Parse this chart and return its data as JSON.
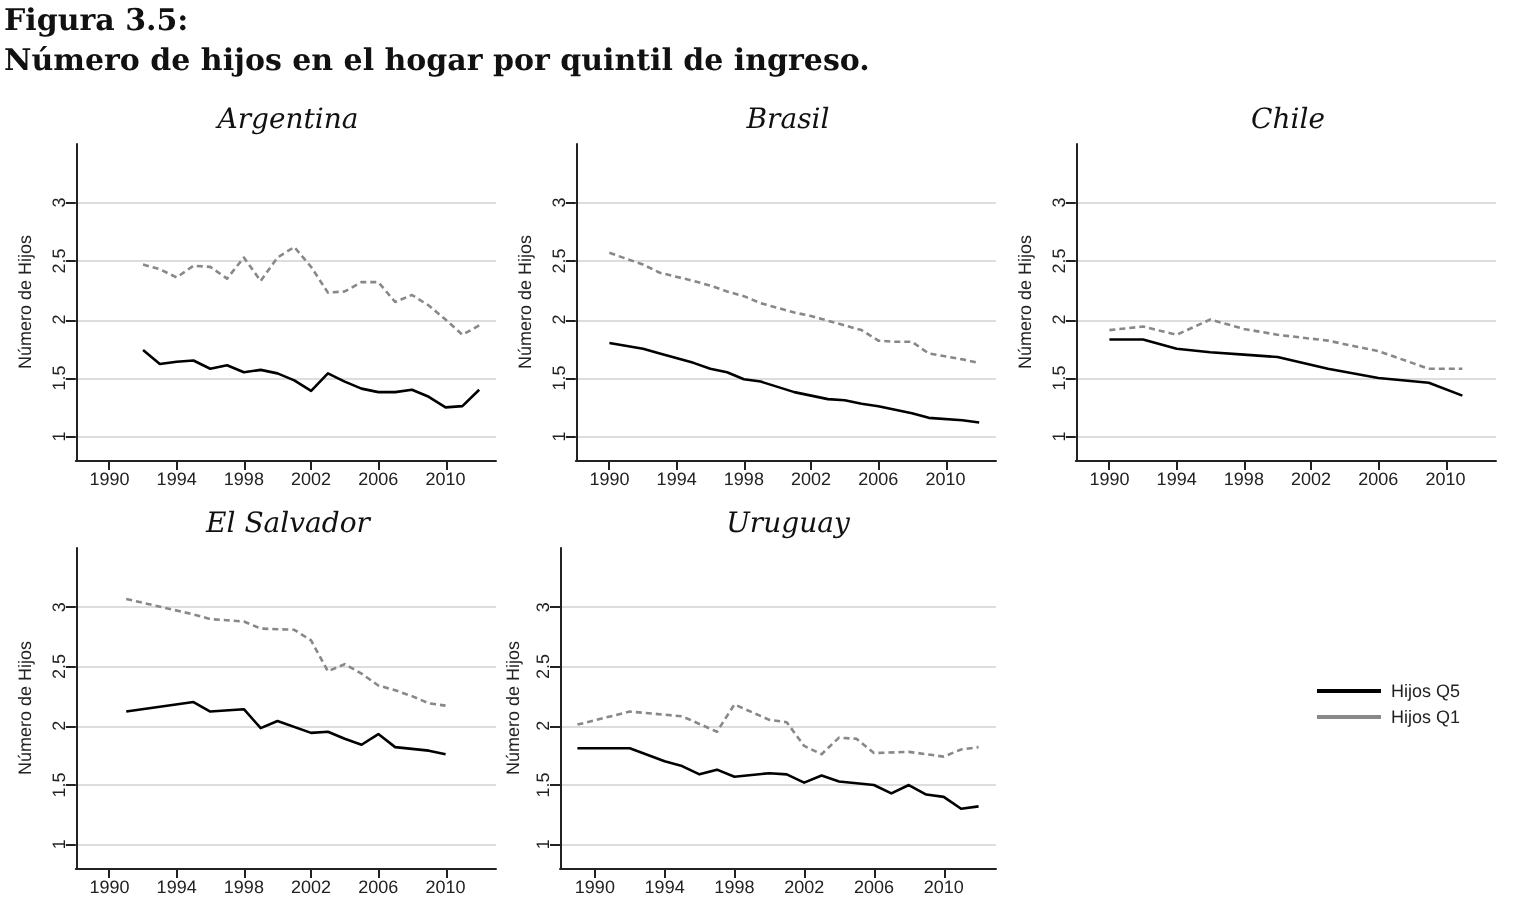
{
  "chart_data": [
    {
      "type": "line",
      "title": "Argentina",
      "annotations": [
        "Figura 3.5:",
        "Número de hijos en el hogar por quintil de ingreso."
      ],
      "ylabel": "Número de Hijos",
      "xlim": [
        1988,
        2013
      ],
      "xticks": [
        1990,
        1994,
        1998,
        2002,
        2006,
        2010
      ],
      "ylim": [
        0.8,
        3.5
      ],
      "yticks": [
        1,
        1.5,
        2,
        2.5,
        3
      ],
      "grid": "y",
      "legend": false,
      "marker": "none",
      "series": [
        {
          "color": "#000000",
          "line_style": "solid",
          "x": [
            1992,
            1993,
            1994,
            1995,
            1996,
            1997,
            1998,
            1999,
            2000,
            2001,
            2002,
            2003,
            2004,
            2005,
            2006,
            2007,
            2008,
            2009,
            2010,
            2011,
            2012
          ],
          "values": [
            1.74,
            1.62,
            1.64,
            1.65,
            1.58,
            1.61,
            1.55,
            1.57,
            1.54,
            1.48,
            1.39,
            1.54,
            1.47,
            1.41,
            1.38,
            1.38,
            1.4,
            1.34,
            1.25,
            1.26,
            1.4
          ]
        },
        {
          "color": "#888888",
          "line_style": "dashed",
          "x": [
            1992,
            1993,
            1994,
            1995,
            1996,
            1997,
            1998,
            1999,
            2000,
            2001,
            2002,
            2003,
            2004,
            2005,
            2006,
            2007,
            2008,
            2009,
            2010,
            2011,
            2012
          ],
          "values": [
            2.47,
            2.43,
            2.36,
            2.46,
            2.45,
            2.35,
            2.53,
            2.33,
            2.53,
            2.62,
            2.45,
            2.23,
            2.24,
            2.32,
            2.32,
            2.15,
            2.21,
            2.12,
            2.0,
            1.87,
            1.95
          ]
        }
      ]
    },
    {
      "type": "line",
      "title": "Brasil",
      "ylabel": "Número de Hijos",
      "xlim": [
        1988,
        2013
      ],
      "xticks": [
        1990,
        1994,
        1998,
        2002,
        2006,
        2010
      ],
      "ylim": [
        0.8,
        3.5
      ],
      "yticks": [
        1,
        1.5,
        2,
        2.5,
        3
      ],
      "grid": "y",
      "legend": false,
      "marker": "none",
      "series": [
        {
          "color": "#000000",
          "line_style": "solid",
          "x": [
            1990,
            1992,
            1993,
            1995,
            1996,
            1997,
            1998,
            1999,
            2001,
            2002,
            2003,
            2004,
            2005,
            2006,
            2007,
            2008,
            2009,
            2011,
            2012
          ],
          "values": [
            1.8,
            1.75,
            1.71,
            1.63,
            1.58,
            1.55,
            1.49,
            1.47,
            1.38,
            1.35,
            1.32,
            1.31,
            1.28,
            1.26,
            1.23,
            1.2,
            1.16,
            1.14,
            1.12
          ]
        },
        {
          "color": "#888888",
          "line_style": "dashed",
          "x": [
            1990,
            1992,
            1993,
            1995,
            1996,
            1997,
            1998,
            1999,
            2001,
            2002,
            2003,
            2004,
            2005,
            2006,
            2007,
            2008,
            2009,
            2011,
            2012
          ],
          "values": [
            2.57,
            2.47,
            2.4,
            2.33,
            2.29,
            2.24,
            2.2,
            2.14,
            2.06,
            2.03,
            1.99,
            1.95,
            1.91,
            1.82,
            1.81,
            1.81,
            1.71,
            1.66,
            1.63
          ]
        }
      ]
    },
    {
      "type": "line",
      "title": "Chile",
      "ylabel": "Número de Hijos",
      "xlim": [
        1988,
        2013
      ],
      "xticks": [
        1990,
        1994,
        1998,
        2002,
        2006,
        2010
      ],
      "ylim": [
        0.8,
        3.5
      ],
      "yticks": [
        1,
        1.5,
        2,
        2.5,
        3
      ],
      "grid": "y",
      "legend": false,
      "marker": "none",
      "series": [
        {
          "color": "#000000",
          "line_style": "solid",
          "x": [
            1990,
            1992,
            1994,
            1996,
            1998,
            2000,
            2003,
            2006,
            2009,
            2011
          ],
          "values": [
            1.83,
            1.83,
            1.75,
            1.72,
            1.7,
            1.68,
            1.58,
            1.5,
            1.46,
            1.35
          ]
        },
        {
          "color": "#888888",
          "line_style": "dashed",
          "x": [
            1990,
            1992,
            1994,
            1996,
            1998,
            2000,
            2003,
            2006,
            2009,
            2011
          ],
          "values": [
            1.91,
            1.94,
            1.87,
            2.0,
            1.92,
            1.87,
            1.82,
            1.73,
            1.58,
            1.58
          ]
        }
      ]
    },
    {
      "type": "line",
      "title": "El Salvador",
      "ylabel": "Número de Hijos",
      "xlim": [
        1988,
        2013
      ],
      "xticks": [
        1990,
        1994,
        1998,
        2002,
        2006,
        2010
      ],
      "ylim": [
        0.8,
        3.5
      ],
      "yticks": [
        1,
        1.5,
        2,
        2.5,
        3
      ],
      "grid": "y",
      "legend": false,
      "marker": "none",
      "series": [
        {
          "color": "#000000",
          "line_style": "solid",
          "x": [
            1991,
            1995,
            1996,
            1998,
            1999,
            2000,
            2002,
            2003,
            2004,
            2005,
            2006,
            2007,
            2009,
            2010
          ],
          "values": [
            2.12,
            2.2,
            2.12,
            2.14,
            1.98,
            2.04,
            1.94,
            1.95,
            1.89,
            1.84,
            1.93,
            1.82,
            1.79,
            1.76
          ]
        },
        {
          "color": "#888888",
          "line_style": "dashed",
          "x": [
            1991,
            1995,
            1996,
            1998,
            1999,
            2001,
            2002,
            2003,
            2004,
            2005,
            2006,
            2007,
            2008,
            2009,
            2010
          ],
          "values": [
            3.07,
            2.94,
            2.9,
            2.88,
            2.82,
            2.81,
            2.72,
            2.46,
            2.52,
            2.44,
            2.34,
            2.3,
            2.25,
            2.19,
            2.17
          ]
        }
      ]
    },
    {
      "type": "line",
      "title": "Uruguay",
      "ylabel": "Número de Hijos",
      "xlim": [
        1988,
        2013
      ],
      "xticks": [
        1990,
        1994,
        1998,
        2002,
        2006,
        2010
      ],
      "ylim": [
        0.8,
        3.5
      ],
      "yticks": [
        1,
        1.5,
        2,
        2.5,
        3
      ],
      "grid": "y",
      "legend": "right",
      "marker": "none",
      "series": [
        {
          "name": "Hijos Q5",
          "color": "#000000",
          "line_style": "solid",
          "x": [
            1989,
            1992,
            1994,
            1995,
            1996,
            1997,
            1998,
            2000,
            2001,
            2002,
            2003,
            2004,
            2006,
            2007,
            2008,
            2009,
            2010,
            2011,
            2012
          ],
          "values": [
            1.81,
            1.81,
            1.7,
            1.66,
            1.59,
            1.63,
            1.57,
            1.6,
            1.59,
            1.52,
            1.58,
            1.53,
            1.5,
            1.43,
            1.5,
            1.42,
            1.4,
            1.3,
            1.32
          ]
        },
        {
          "name": "Hijos Q1",
          "color": "#888888",
          "line_style": "dashed",
          "x": [
            1989,
            1992,
            1995,
            1997,
            1998,
            2000,
            2001,
            2002,
            2003,
            2004,
            2005,
            2006,
            2008,
            2010,
            2011,
            2012
          ],
          "values": [
            2.01,
            2.12,
            2.08,
            1.95,
            2.18,
            2.05,
            2.03,
            1.83,
            1.76,
            1.9,
            1.89,
            1.77,
            1.78,
            1.74,
            1.8,
            1.82
          ]
        }
      ]
    }
  ]
}
